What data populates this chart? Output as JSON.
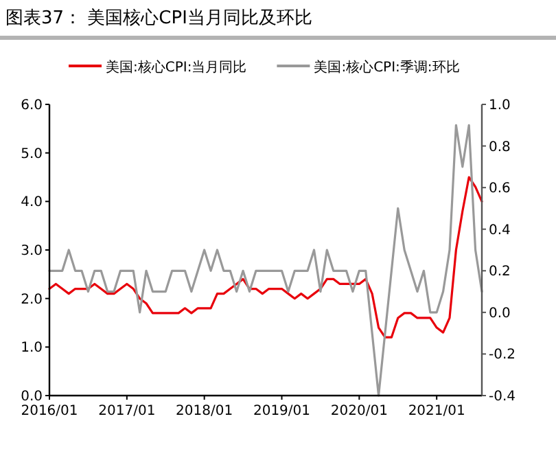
{
  "chart_data": {
    "type": "line",
    "title": "图表37： 美国核心CPI当月同比及环比",
    "x": [
      "2016-01",
      "2016-02",
      "2016-03",
      "2016-04",
      "2016-05",
      "2016-06",
      "2016-07",
      "2016-08",
      "2016-09",
      "2016-10",
      "2016-11",
      "2016-12",
      "2017-01",
      "2017-02",
      "2017-03",
      "2017-04",
      "2017-05",
      "2017-06",
      "2017-07",
      "2017-08",
      "2017-09",
      "2017-10",
      "2017-11",
      "2017-12",
      "2018-01",
      "2018-02",
      "2018-03",
      "2018-04",
      "2018-05",
      "2018-06",
      "2018-07",
      "2018-08",
      "2018-09",
      "2018-10",
      "2018-11",
      "2018-12",
      "2019-01",
      "2019-02",
      "2019-03",
      "2019-04",
      "2019-05",
      "2019-06",
      "2019-07",
      "2019-08",
      "2019-09",
      "2019-10",
      "2019-11",
      "2019-12",
      "2020-01",
      "2020-02",
      "2020-03",
      "2020-04",
      "2020-05",
      "2020-06",
      "2020-07",
      "2020-08",
      "2020-09",
      "2020-10",
      "2020-11",
      "2020-12",
      "2021-01",
      "2021-02",
      "2021-03",
      "2021-04",
      "2021-05",
      "2021-06",
      "2021-07",
      "2021-08"
    ],
    "series": [
      {
        "name": "美国:核心CPI:当月同比",
        "color": "#e8000b",
        "values": [
          2.2,
          2.3,
          2.2,
          2.1,
          2.2,
          2.2,
          2.2,
          2.3,
          2.2,
          2.1,
          2.1,
          2.2,
          2.3,
          2.2,
          2.0,
          1.9,
          1.7,
          1.7,
          1.7,
          1.7,
          1.7,
          1.8,
          1.7,
          1.8,
          1.8,
          1.8,
          2.1,
          2.1,
          2.2,
          2.3,
          2.4,
          2.2,
          2.2,
          2.1,
          2.2,
          2.2,
          2.2,
          2.1,
          2.0,
          2.1,
          2.0,
          2.1,
          2.2,
          2.4,
          2.4,
          2.3,
          2.3,
          2.3,
          2.3,
          2.4,
          2.1,
          1.4,
          1.2,
          1.2,
          1.6,
          1.7,
          1.7,
          1.6,
          1.6,
          1.6,
          1.4,
          1.3,
          1.6,
          3.0,
          3.8,
          4.5,
          4.3,
          4.0
        ]
      },
      {
        "name": "美国:核心CPI:季调:环比",
        "color": "#999999",
        "axis": "y2",
        "values": [
          0.2,
          0.2,
          0.2,
          0.3,
          0.2,
          0.2,
          0.1,
          0.2,
          0.2,
          0.1,
          0.1,
          0.2,
          0.2,
          0.2,
          0.0,
          0.2,
          0.1,
          0.1,
          0.1,
          0.2,
          0.2,
          0.2,
          0.1,
          0.2,
          0.3,
          0.2,
          0.3,
          0.2,
          0.2,
          0.1,
          0.2,
          0.1,
          0.2,
          0.2,
          0.2,
          0.2,
          0.2,
          0.1,
          0.2,
          0.2,
          0.2,
          0.3,
          0.1,
          0.3,
          0.2,
          0.2,
          0.2,
          0.1,
          0.2,
          0.2,
          -0.1,
          -0.4,
          -0.1,
          0.2,
          0.5,
          0.3,
          0.2,
          0.1,
          0.2,
          0.0,
          0.0,
          0.1,
          0.3,
          0.9,
          0.7,
          0.9,
          0.3,
          0.1
        ]
      }
    ],
    "xlim": [
      "2016-01",
      "2021-08"
    ],
    "xticks": [
      {
        "value": "2016-01",
        "label": "2016/01"
      },
      {
        "value": "2017-01",
        "label": "2017/01"
      },
      {
        "value": "2018-01",
        "label": "2018/01"
      },
      {
        "value": "2019-01",
        "label": "2019/01"
      },
      {
        "value": "2020-01",
        "label": "2020/01"
      },
      {
        "value": "2021-01",
        "label": "2021/01"
      }
    ],
    "ylim": [
      0,
      6
    ],
    "yticks": [
      {
        "value": 0,
        "label": "0.0"
      },
      {
        "value": 1,
        "label": "1.0"
      },
      {
        "value": 2,
        "label": "2.0"
      },
      {
        "value": 3,
        "label": "3.0"
      },
      {
        "value": 4,
        "label": "4.0"
      },
      {
        "value": 5,
        "label": "5.0"
      },
      {
        "value": 6,
        "label": "6.0"
      }
    ],
    "y2lim": [
      -0.4,
      1.0
    ],
    "y2ticks": [
      {
        "value": -0.4,
        "label": "-0.4"
      },
      {
        "value": -0.2,
        "label": "-0.2"
      },
      {
        "value": 0,
        "label": "0.0"
      },
      {
        "value": 0.2,
        "label": "0.2"
      },
      {
        "value": 0.4,
        "label": "0.4"
      },
      {
        "value": 0.6,
        "label": "0.6"
      },
      {
        "value": 0.8,
        "label": "0.8"
      },
      {
        "value": 1.0,
        "label": "1.0"
      }
    ],
    "legend": "top",
    "grid": false
  }
}
